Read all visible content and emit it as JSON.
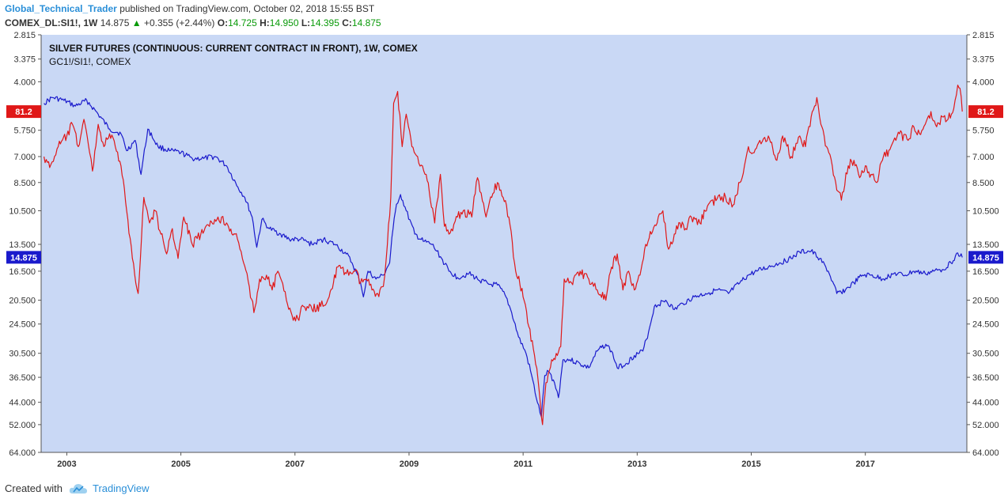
{
  "header": {
    "author": "Global_Technical_Trader",
    "published_text": "published on TradingView.com, October 02, 2018 15:55 BST",
    "symbol": "COMEX_DL:SI1!, 1W",
    "last_price": "14.875",
    "change": "+0.355 (+2.44%)",
    "open_label": "O:",
    "open": "14.725",
    "high_label": "H:",
    "high": "14.950",
    "low_label": "L:",
    "low": "14.395",
    "close_label": "C:",
    "close": "14.875"
  },
  "footer": {
    "created_with": "Created with",
    "brand": "TradingView"
  },
  "chart_data": {
    "type": "line",
    "title": "SILVER FUTURES (CONTINUOUS: CURRENT CONTRACT IN FRONT), 1W, COMEX",
    "subtitle": "GC1!/SI1!, COMEX",
    "background": "#c9d8f5",
    "y_scale": "inverted-log",
    "ylim": [
      2.815,
      64.0
    ],
    "y_ticks": [
      "2.815",
      "3.375",
      "4.000",
      "5.750",
      "7.000",
      "8.500",
      "10.500",
      "13.500",
      "16.500",
      "20.500",
      "24.500",
      "30.500",
      "36.500",
      "44.000",
      "52.000",
      "64.000"
    ],
    "x_ticks": [
      "2003",
      "2005",
      "2007",
      "2009",
      "2011",
      "2013",
      "2015",
      "2017"
    ],
    "xlim": [
      2002.55,
      2018.78
    ],
    "grid": false,
    "series": [
      {
        "name": "SI1!",
        "color": "#1a1acc",
        "last_label": "14.875",
        "points": [
          [
            2002.6,
            4.7
          ],
          [
            2002.75,
            4.5
          ],
          [
            2002.95,
            4.6
          ],
          [
            2003.15,
            4.8
          ],
          [
            2003.35,
            4.6
          ],
          [
            2003.55,
            5.1
          ],
          [
            2003.75,
            5.7
          ],
          [
            2003.95,
            5.9
          ],
          [
            2004.05,
            6.7
          ],
          [
            2004.2,
            6.2
          ],
          [
            2004.3,
            8.0
          ],
          [
            2004.42,
            5.7
          ],
          [
            2004.6,
            6.5
          ],
          [
            2004.8,
            6.7
          ],
          [
            2005.0,
            6.8
          ],
          [
            2005.2,
            7.1
          ],
          [
            2005.4,
            7.1
          ],
          [
            2005.6,
            7.0
          ],
          [
            2005.8,
            7.5
          ],
          [
            2006.0,
            8.8
          ],
          [
            2006.12,
            9.5
          ],
          [
            2006.25,
            11.0
          ],
          [
            2006.33,
            13.8
          ],
          [
            2006.42,
            11.2
          ],
          [
            2006.55,
            12.0
          ],
          [
            2006.75,
            12.5
          ],
          [
            2006.9,
            13.0
          ],
          [
            2007.1,
            13.0
          ],
          [
            2007.3,
            13.5
          ],
          [
            2007.5,
            13.0
          ],
          [
            2007.7,
            13.5
          ],
          [
            2007.9,
            14.5
          ],
          [
            2008.0,
            15.5
          ],
          [
            2008.15,
            18.0
          ],
          [
            2008.2,
            20.0
          ],
          [
            2008.28,
            16.5
          ],
          [
            2008.42,
            17.5
          ],
          [
            2008.55,
            17.0
          ],
          [
            2008.66,
            15.5
          ],
          [
            2008.72,
            12.0
          ],
          [
            2008.78,
            10.0
          ],
          [
            2008.85,
            9.3
          ],
          [
            2008.95,
            10.5
          ],
          [
            2009.1,
            12.5
          ],
          [
            2009.25,
            13.2
          ],
          [
            2009.4,
            13.5
          ],
          [
            2009.55,
            14.8
          ],
          [
            2009.7,
            16.5
          ],
          [
            2009.85,
            17.3
          ],
          [
            2010.05,
            16.8
          ],
          [
            2010.2,
            17.5
          ],
          [
            2010.4,
            18.2
          ],
          [
            2010.55,
            18.3
          ],
          [
            2010.7,
            20.0
          ],
          [
            2010.8,
            22.5
          ],
          [
            2010.92,
            27.0
          ],
          [
            2011.05,
            30.5
          ],
          [
            2011.15,
            36.0
          ],
          [
            2011.25,
            44.0
          ],
          [
            2011.32,
            49.0
          ],
          [
            2011.38,
            36.0
          ],
          [
            2011.45,
            35.0
          ],
          [
            2011.55,
            38.0
          ],
          [
            2011.62,
            42.5
          ],
          [
            2011.7,
            32.0
          ],
          [
            2011.82,
            32.0
          ],
          [
            2012.0,
            33.0
          ],
          [
            2012.15,
            34.0
          ],
          [
            2012.3,
            30.0
          ],
          [
            2012.45,
            28.5
          ],
          [
            2012.55,
            30.0
          ],
          [
            2012.65,
            34.0
          ],
          [
            2012.8,
            33.0
          ],
          [
            2012.95,
            31.0
          ],
          [
            2013.1,
            30.0
          ],
          [
            2013.2,
            26.0
          ],
          [
            2013.3,
            21.5
          ],
          [
            2013.5,
            20.5
          ],
          [
            2013.65,
            22.0
          ],
          [
            2013.8,
            21.0
          ],
          [
            2014.0,
            20.0
          ],
          [
            2014.2,
            19.5
          ],
          [
            2014.4,
            19.0
          ],
          [
            2014.6,
            19.5
          ],
          [
            2014.8,
            18.0
          ],
          [
            2014.95,
            17.0
          ],
          [
            2015.1,
            16.5
          ],
          [
            2015.3,
            16.0
          ],
          [
            2015.5,
            15.5
          ],
          [
            2015.7,
            15.0
          ],
          [
            2015.85,
            14.3
          ],
          [
            2016.05,
            14.2
          ],
          [
            2016.2,
            15.0
          ],
          [
            2016.35,
            16.5
          ],
          [
            2016.5,
            19.5
          ],
          [
            2016.65,
            19.0
          ],
          [
            2016.8,
            18.0
          ],
          [
            2016.95,
            17.0
          ],
          [
            2017.1,
            17.0
          ],
          [
            2017.3,
            17.5
          ],
          [
            2017.5,
            16.8
          ],
          [
            2017.7,
            17.0
          ],
          [
            2017.85,
            16.5
          ],
          [
            2018.05,
            16.8
          ],
          [
            2018.2,
            16.5
          ],
          [
            2018.35,
            16.3
          ],
          [
            2018.5,
            15.5
          ],
          [
            2018.62,
            14.4
          ],
          [
            2018.7,
            14.875
          ]
        ]
      },
      {
        "name": "GC1!/SI1!",
        "color": "#e01818",
        "last_label": "81.2",
        "points": [
          [
            2002.6,
            7.0
          ],
          [
            2002.7,
            7.6
          ],
          [
            2002.85,
            6.5
          ],
          [
            2003.0,
            6.0
          ],
          [
            2003.1,
            5.5
          ],
          [
            2003.2,
            6.5
          ],
          [
            2003.3,
            5.3
          ],
          [
            2003.4,
            6.8
          ],
          [
            2003.45,
            7.8
          ],
          [
            2003.55,
            5.5
          ],
          [
            2003.65,
            6.5
          ],
          [
            2003.75,
            5.9
          ],
          [
            2003.85,
            6.5
          ],
          [
            2003.95,
            7.5
          ],
          [
            2004.05,
            10.5
          ],
          [
            2004.15,
            15.0
          ],
          [
            2004.25,
            19.5
          ],
          [
            2004.35,
            9.5
          ],
          [
            2004.45,
            11.5
          ],
          [
            2004.55,
            10.5
          ],
          [
            2004.65,
            12.5
          ],
          [
            2004.75,
            14.5
          ],
          [
            2004.85,
            12.0
          ],
          [
            2004.95,
            15.0
          ],
          [
            2005.05,
            11.0
          ],
          [
            2005.2,
            13.5
          ],
          [
            2005.35,
            12.5
          ],
          [
            2005.5,
            11.8
          ],
          [
            2005.65,
            11.0
          ],
          [
            2005.8,
            11.5
          ],
          [
            2005.95,
            12.5
          ],
          [
            2006.1,
            15.5
          ],
          [
            2006.2,
            18.5
          ],
          [
            2006.28,
            22.5
          ],
          [
            2006.38,
            17.5
          ],
          [
            2006.5,
            17.0
          ],
          [
            2006.6,
            19.0
          ],
          [
            2006.7,
            16.5
          ],
          [
            2006.85,
            20.5
          ],
          [
            2006.95,
            23.0
          ],
          [
            2007.05,
            23.5
          ],
          [
            2007.15,
            21.5
          ],
          [
            2007.3,
            22.0
          ],
          [
            2007.45,
            21.5
          ],
          [
            2007.6,
            20.0
          ],
          [
            2007.75,
            16.0
          ],
          [
            2007.9,
            16.8
          ],
          [
            2008.05,
            16.5
          ],
          [
            2008.15,
            18.0
          ],
          [
            2008.25,
            17.5
          ],
          [
            2008.35,
            19.0
          ],
          [
            2008.45,
            19.5
          ],
          [
            2008.55,
            18.5
          ],
          [
            2008.62,
            13.5
          ],
          [
            2008.68,
            9.5
          ],
          [
            2008.73,
            4.7
          ],
          [
            2008.8,
            4.3
          ],
          [
            2008.88,
            6.5
          ],
          [
            2008.95,
            5.1
          ],
          [
            2009.05,
            6.5
          ],
          [
            2009.15,
            7.0
          ],
          [
            2009.3,
            8.0
          ],
          [
            2009.45,
            11.5
          ],
          [
            2009.55,
            8.0
          ],
          [
            2009.62,
            11.8
          ],
          [
            2009.7,
            12.5
          ],
          [
            2009.85,
            11.0
          ],
          [
            2009.95,
            10.5
          ],
          [
            2010.1,
            11.0
          ],
          [
            2010.2,
            8.2
          ],
          [
            2010.35,
            11.0
          ],
          [
            2010.45,
            9.5
          ],
          [
            2010.55,
            8.5
          ],
          [
            2010.65,
            9.5
          ],
          [
            2010.75,
            11.0
          ],
          [
            2010.85,
            15.5
          ],
          [
            2011.0,
            20.0
          ],
          [
            2011.1,
            25.0
          ],
          [
            2011.2,
            31.0
          ],
          [
            2011.28,
            40.0
          ],
          [
            2011.34,
            52.0
          ],
          [
            2011.4,
            38.0
          ],
          [
            2011.5,
            32.0
          ],
          [
            2011.6,
            31.0
          ],
          [
            2011.66,
            29.0
          ],
          [
            2011.72,
            17.5
          ],
          [
            2011.85,
            18.0
          ],
          [
            2012.0,
            16.5
          ],
          [
            2012.15,
            17.5
          ],
          [
            2012.3,
            19.0
          ],
          [
            2012.45,
            20.5
          ],
          [
            2012.55,
            16.0
          ],
          [
            2012.65,
            14.5
          ],
          [
            2012.75,
            19.0
          ],
          [
            2012.85,
            16.5
          ],
          [
            2012.95,
            19.0
          ],
          [
            2013.05,
            17.0
          ],
          [
            2013.15,
            13.5
          ],
          [
            2013.25,
            12.5
          ],
          [
            2013.35,
            11.5
          ],
          [
            2013.45,
            10.5
          ],
          [
            2013.55,
            14.0
          ],
          [
            2013.65,
            12.5
          ],
          [
            2013.75,
            11.5
          ],
          [
            2013.85,
            12.0
          ],
          [
            2013.95,
            11.0
          ],
          [
            2014.1,
            11.5
          ],
          [
            2014.25,
            10.0
          ],
          [
            2014.4,
            9.6
          ],
          [
            2014.55,
            9.5
          ],
          [
            2014.7,
            10.0
          ],
          [
            2014.8,
            8.5
          ],
          [
            2014.88,
            7.5
          ],
          [
            2014.95,
            6.5
          ],
          [
            2015.05,
            6.8
          ],
          [
            2015.15,
            6.2
          ],
          [
            2015.3,
            6.0
          ],
          [
            2015.45,
            7.2
          ],
          [
            2015.55,
            6.0
          ],
          [
            2015.7,
            7.0
          ],
          [
            2015.85,
            6.0
          ],
          [
            2015.95,
            6.5
          ],
          [
            2016.05,
            5.2
          ],
          [
            2016.15,
            4.5
          ],
          [
            2016.22,
            5.5
          ],
          [
            2016.32,
            6.5
          ],
          [
            2016.42,
            7.5
          ],
          [
            2016.5,
            9.0
          ],
          [
            2016.58,
            9.7
          ],
          [
            2016.7,
            7.5
          ],
          [
            2016.8,
            7.2
          ],
          [
            2016.9,
            8.2
          ],
          [
            2017.0,
            7.5
          ],
          [
            2017.1,
            8.0
          ],
          [
            2017.2,
            8.5
          ],
          [
            2017.3,
            7.2
          ],
          [
            2017.45,
            6.5
          ],
          [
            2017.6,
            5.9
          ],
          [
            2017.75,
            6.2
          ],
          [
            2017.85,
            5.6
          ],
          [
            2017.95,
            5.9
          ],
          [
            2018.05,
            5.5
          ],
          [
            2018.15,
            5.0
          ],
          [
            2018.25,
            5.6
          ],
          [
            2018.35,
            5.2
          ],
          [
            2018.45,
            5.3
          ],
          [
            2018.55,
            4.9
          ],
          [
            2018.62,
            4.1
          ],
          [
            2018.66,
            4.2
          ],
          [
            2018.7,
            5.0
          ]
        ]
      }
    ]
  }
}
